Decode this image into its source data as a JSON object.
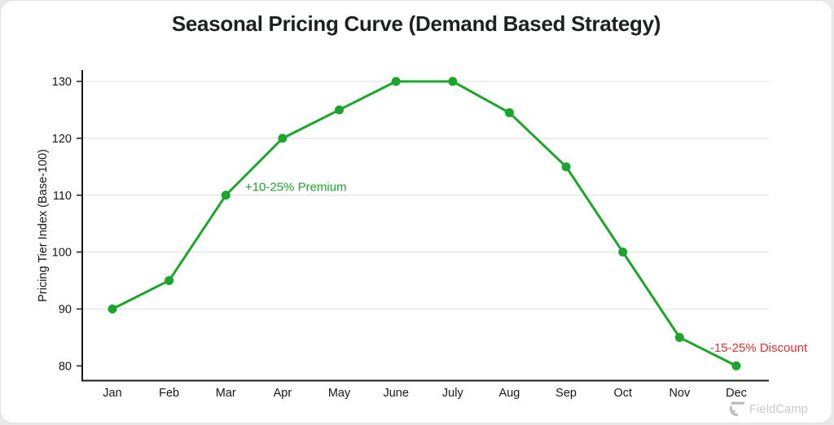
{
  "title": "Seasonal Pricing Curve (Demand Based Strategy)",
  "branding": {
    "logo_text": "FieldCamp",
    "logo_icon": "fieldcamp-f-icon",
    "logo_icon_color": "#b9b9b9",
    "logo_text_color": "#c9c9c9"
  },
  "chart_data": {
    "type": "line",
    "title": "Seasonal Pricing Curve (Demand Based Strategy)",
    "categories": [
      "Jan",
      "Feb",
      "Mar",
      "Apr",
      "May",
      "June",
      "July",
      "Aug",
      "Sep",
      "Oct",
      "Nov",
      "Dec"
    ],
    "values": [
      90,
      95,
      110,
      120,
      125,
      130,
      130,
      124.5,
      115,
      100,
      85,
      80
    ],
    "series_name": "Pricing Tier Index",
    "xlabel": "",
    "ylabel": "Pricing Tier Index (Base-100)",
    "yticks": [
      80,
      90,
      100,
      110,
      120,
      130
    ],
    "gridline_values": [
      90,
      100,
      110,
      120,
      130
    ],
    "ylim": [
      80,
      130
    ],
    "grid": "horizontal",
    "legend": "none",
    "line_color": "#1ba62b",
    "point_color": "#1ba62b",
    "axis_color": "#1a1a1a",
    "grid_color": "#e3e3e3",
    "tick_label_color": "#161616",
    "annotations": [
      {
        "name": "premium-annotation",
        "text": "+10-25% Premium",
        "color": "#1ba62b",
        "month_index": 2.34,
        "value": 111.5
      },
      {
        "name": "discount-annotation",
        "text": "-15-25% Discount",
        "color": "#e0302f",
        "month_index": 10.54,
        "value": 83.2
      }
    ]
  }
}
